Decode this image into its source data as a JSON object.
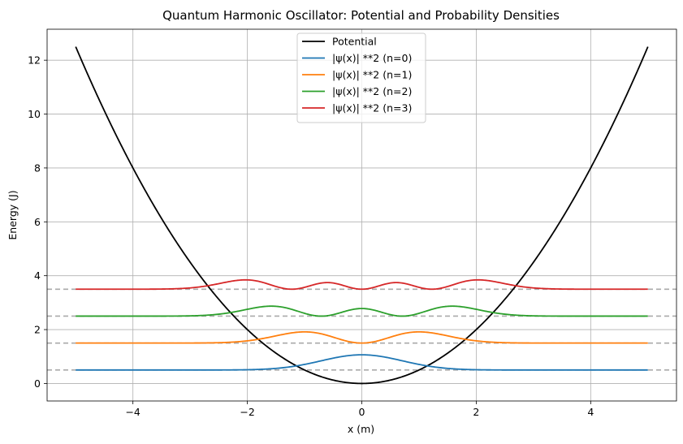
{
  "chart_data": {
    "type": "line",
    "title": "Quantum Harmonic Oscillator: Potential and Probability Densities",
    "xlabel": "x (m)",
    "ylabel": "Energy (J)",
    "xlim": [
      -5.5,
      5.5
    ],
    "ylim": [
      -0.65,
      13.15
    ],
    "x_ticks": [
      -4,
      -2,
      0,
      2,
      4
    ],
    "x_tick_labels": [
      "−4",
      "−2",
      "0",
      "2",
      "4"
    ],
    "y_ticks": [
      0,
      2,
      4,
      6,
      8,
      10,
      12
    ],
    "y_tick_labels": [
      "0",
      "2",
      "4",
      "6",
      "8",
      "10",
      "12"
    ],
    "grid": true,
    "legend_position": "top-center",
    "x_range": [
      -5,
      5
    ],
    "potential": {
      "name": "Potential",
      "function": "0.5*x^2",
      "color": "#000000"
    },
    "energy_levels": [
      0.5,
      1.5,
      2.5,
      3.5
    ],
    "energy_level_line_color": "#aaaaaa",
    "series": [
      {
        "name": "|ψ(x)| **2 (n=0)",
        "n": 0,
        "offset": 0.5,
        "color": "#1f77b4"
      },
      {
        "name": "|ψ(x)| **2 (n=1)",
        "n": 1,
        "offset": 1.5,
        "color": "#ff7f0e"
      },
      {
        "name": "|ψ(x)| **2 (n=2)",
        "n": 2,
        "offset": 2.5,
        "color": "#2ca02c"
      },
      {
        "name": "|ψ(x)| **2 (n=3)",
        "n": 3,
        "offset": 3.5,
        "color": "#d62728"
      }
    ]
  }
}
